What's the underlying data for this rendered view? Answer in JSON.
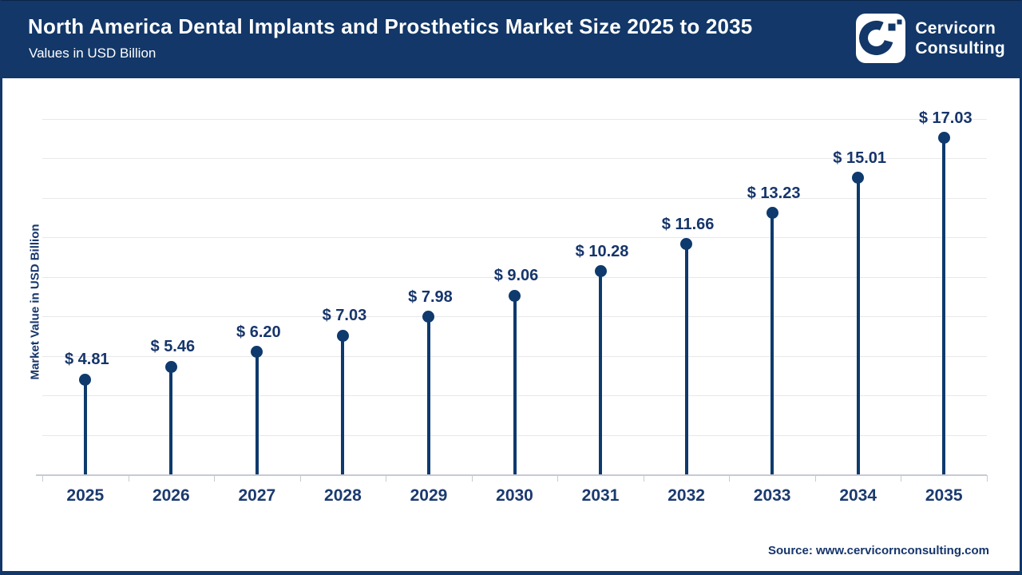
{
  "header": {
    "title": "North America Dental Implants and Prosthetics Market Size 2025 to 2035",
    "subtitle": "Values in USD Billion",
    "logo": {
      "icon": "cervicorn-c-icon",
      "name_line1": "Cervicorn",
      "name_line2": "Consulting"
    }
  },
  "chart_data": {
    "type": "lollipop",
    "title": "North America Dental Implants and Prosthetics Market Size 2025 to 2035",
    "subtitle": "Values in USD Billion",
    "categories": [
      "2025",
      "2026",
      "2027",
      "2028",
      "2029",
      "2030",
      "2031",
      "2032",
      "2033",
      "2034",
      "2035"
    ],
    "values": [
      4.81,
      5.46,
      6.2,
      7.03,
      7.98,
      9.06,
      10.28,
      11.66,
      13.23,
      15.01,
      17.03
    ],
    "value_prefix": "$ ",
    "xlabel": "",
    "ylabel": "Market Value in USD Billion",
    "ylim": [
      0,
      18
    ],
    "grid_step": 2,
    "grid": true,
    "legend": false,
    "y_tick_labels_visible": false
  },
  "footer": {
    "source": "Source: www.cervicornconsulting.com"
  },
  "colors": {
    "navy": "#123768",
    "marker": "#0e3a6d",
    "label_text": "#16356b",
    "year_text": "#1b3a6f",
    "gridline": "#e8e8e8",
    "axis": "#c6cbd1",
    "header_text": "#ffffff"
  }
}
